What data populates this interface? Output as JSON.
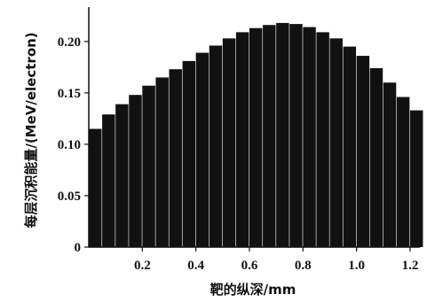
{
  "chart_data": {
    "type": "bar",
    "xlabel": "靶的纵深/mm",
    "ylabel": "每层沉积能量/(MeV/electron)",
    "xlim": [
      0,
      1.23
    ],
    "ylim": [
      0,
      0.23
    ],
    "x_ticks": [
      "0.2",
      "0.4",
      "0.6",
      "0.8",
      "1.0",
      "1.2"
    ],
    "x_tick_values": [
      0.2,
      0.4,
      0.6,
      0.8,
      1.0,
      1.2
    ],
    "y_ticks": [
      "0",
      "0.05",
      "0.10",
      "0.15",
      "0.20"
    ],
    "y_tick_values": [
      0,
      0.05,
      0.1,
      0.15,
      0.2
    ],
    "bar_width": 0.05,
    "x": [
      0.025,
      0.075,
      0.125,
      0.175,
      0.225,
      0.275,
      0.325,
      0.375,
      0.425,
      0.475,
      0.525,
      0.575,
      0.625,
      0.675,
      0.725,
      0.775,
      0.825,
      0.875,
      0.925,
      0.975,
      1.025,
      1.075,
      1.125,
      1.175,
      1.225
    ],
    "values": [
      0.115,
      0.129,
      0.139,
      0.148,
      0.157,
      0.165,
      0.173,
      0.181,
      0.189,
      0.196,
      0.203,
      0.209,
      0.213,
      0.216,
      0.218,
      0.217,
      0.214,
      0.209,
      0.203,
      0.195,
      0.186,
      0.174,
      0.16,
      0.146,
      0.133
    ],
    "bar_color": "#111111",
    "grid": false
  }
}
